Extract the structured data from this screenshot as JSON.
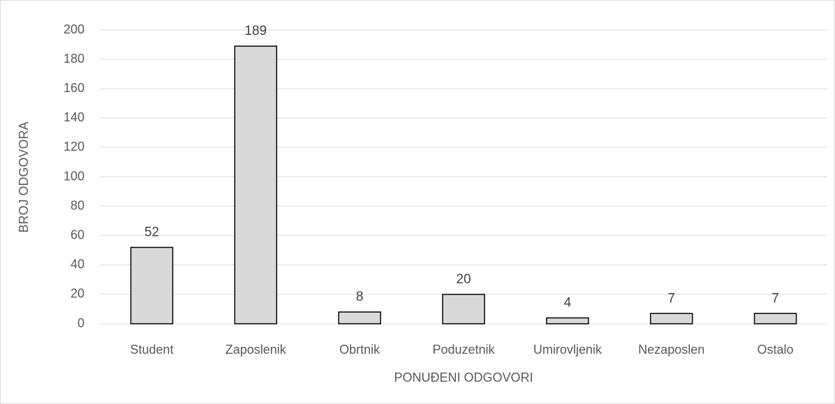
{
  "chart_data": {
    "type": "bar",
    "x_label": "PONUĐENI ODGOVORI",
    "y_label": "BROJ ODGOVORA",
    "categories": [
      "Student",
      "Zaposlenik",
      "Obrtnik",
      "Poduzetnik",
      "Umirovljenik",
      "Nezaposlen",
      "Ostalo"
    ],
    "values": [
      52,
      189,
      8,
      20,
      4,
      7,
      7
    ],
    "color": "#d9d9d9",
    "ylim": [
      0,
      200
    ],
    "yticks": [
      0,
      20,
      40,
      60,
      80,
      100,
      120,
      140,
      160,
      180,
      200
    ],
    "grid": true,
    "data_labels": true
  }
}
